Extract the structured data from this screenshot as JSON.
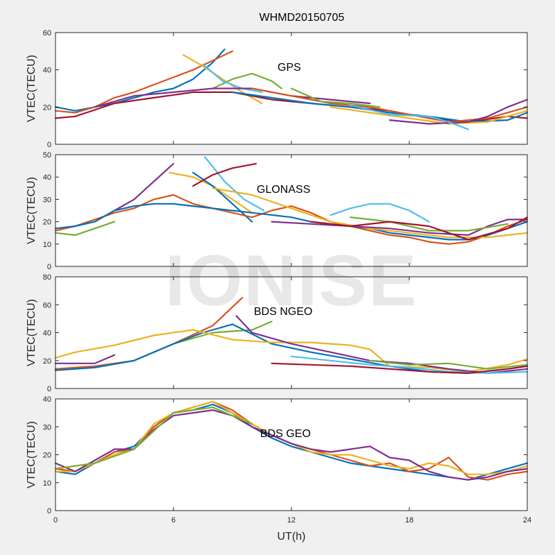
{
  "figure": {
    "title": "WHMD20150705",
    "watermark": "IONISE"
  },
  "colors": [
    "#0072BD",
    "#D95319",
    "#EDB120",
    "#7E2F8E",
    "#77AC30",
    "#4DBEEE",
    "#A2142F"
  ],
  "chart_data": [
    {
      "type": "line",
      "annotation": "GPS",
      "ylabel": "VTEC(TECU)",
      "xlim": [
        0,
        24
      ],
      "ylim": [
        0,
        60
      ],
      "yticks": [
        "0",
        "20",
        "40",
        "60"
      ],
      "xticks": [
        "0",
        "6",
        "12",
        "18",
        "24"
      ],
      "series": [
        {
          "color_index": 0,
          "x": [
            0,
            1,
            2,
            3,
            4,
            5,
            6,
            7,
            8,
            8.6
          ],
          "y": [
            20,
            18,
            20,
            22,
            25,
            28,
            30,
            35,
            44,
            51
          ]
        },
        {
          "color_index": 1,
          "x": [
            0,
            1,
            2,
            3,
            4,
            5,
            6,
            7,
            8,
            9
          ],
          "y": [
            18,
            17,
            20,
            25,
            28,
            32,
            36,
            40,
            45,
            50
          ]
        },
        {
          "color_index": 2,
          "x": [
            6.5,
            7.5,
            8.5,
            9.5,
            10.5
          ],
          "y": [
            48,
            42,
            35,
            28,
            22
          ]
        },
        {
          "color_index": 4,
          "x": [
            8,
            9,
            10,
            11,
            11.5
          ],
          "y": [
            30,
            35,
            38,
            34,
            30
          ]
        },
        {
          "color_index": 5,
          "x": [
            7.5,
            8.5,
            9.5,
            10.5
          ],
          "y": [
            43,
            34,
            30,
            28
          ]
        },
        {
          "color_index": 3,
          "x": [
            2,
            4,
            6,
            8,
            10,
            12,
            14,
            16
          ],
          "y": [
            20,
            26,
            28,
            30,
            30,
            26,
            24,
            22
          ]
        },
        {
          "color_index": 6,
          "x": [
            0,
            1,
            3,
            5,
            7,
            9,
            11,
            13,
            15,
            17,
            19,
            21,
            23,
            24
          ],
          "y": [
            14,
            15,
            22,
            25,
            28,
            28,
            24,
            22,
            20,
            18,
            14,
            12,
            15,
            14
          ]
        },
        {
          "color_index": 0,
          "x": [
            9,
            11,
            13,
            15,
            17,
            19,
            21,
            23,
            24
          ],
          "y": [
            28,
            25,
            22,
            20,
            17,
            15,
            12,
            13,
            17
          ]
        },
        {
          "color_index": 1,
          "x": [
            10,
            12,
            14,
            16,
            18,
            20,
            22,
            24
          ],
          "y": [
            30,
            26,
            22,
            20,
            16,
            12,
            14,
            20
          ]
        },
        {
          "color_index": 2,
          "x": [
            14,
            16,
            18,
            20,
            22,
            24
          ],
          "y": [
            20,
            17,
            14,
            11,
            12,
            18
          ]
        },
        {
          "color_index": 3,
          "x": [
            17,
            19,
            21,
            22,
            23,
            24
          ],
          "y": [
            13,
            11,
            12,
            15,
            20,
            24
          ]
        },
        {
          "color_index": 5,
          "x": [
            15,
            17,
            19,
            20,
            21
          ],
          "y": [
            21,
            16,
            15,
            12,
            8
          ]
        },
        {
          "color_index": 4,
          "x": [
            12,
            13.5,
            15,
            16.5
          ],
          "y": [
            30,
            23,
            22,
            20
          ]
        }
      ]
    },
    {
      "type": "line",
      "annotation": "GLONASS",
      "ylabel": "VTEC(TECU)",
      "xlim": [
        0,
        24
      ],
      "ylim": [
        0,
        50
      ],
      "yticks": [
        "0",
        "10",
        "20",
        "30",
        "40",
        "50"
      ],
      "xticks": [
        "0",
        "6",
        "12",
        "18",
        "24"
      ],
      "series": [
        {
          "color_index": 3,
          "x": [
            2,
            3,
            4,
            5,
            6
          ],
          "y": [
            20,
            25,
            30,
            38,
            46
          ]
        },
        {
          "color_index": 2,
          "x": [
            5.8,
            7,
            8,
            9,
            10
          ],
          "y": [
            42,
            40,
            36,
            30,
            24
          ]
        },
        {
          "color_index": 0,
          "x": [
            7,
            8,
            9,
            10
          ],
          "y": [
            42,
            36,
            28,
            20
          ]
        },
        {
          "color_index": 5,
          "x": [
            7.6,
            8.6,
            9.6,
            10.6
          ],
          "y": [
            49,
            38,
            30,
            25
          ]
        },
        {
          "color_index": 6,
          "x": [
            7,
            8,
            9,
            10.2
          ],
          "y": [
            36,
            41,
            44,
            46
          ]
        },
        {
          "color_index": 4,
          "x": [
            0,
            1,
            2,
            3
          ],
          "y": [
            15,
            14,
            17,
            20
          ]
        },
        {
          "color_index": 1,
          "x": [
            0,
            1,
            2,
            3,
            4,
            5,
            6,
            7,
            8,
            9,
            10,
            11,
            12,
            13,
            14,
            15,
            16,
            17,
            18,
            19,
            20,
            21,
            22,
            23,
            24
          ],
          "y": [
            16,
            18,
            21,
            24,
            26,
            30,
            32,
            28,
            26,
            24,
            22,
            25,
            27,
            24,
            20,
            18,
            16,
            14,
            13,
            11,
            10,
            11,
            14,
            18,
            21
          ]
        },
        {
          "color_index": 0,
          "x": [
            0,
            1,
            2,
            3,
            4,
            5,
            6,
            7,
            8,
            9,
            10,
            11,
            12,
            13,
            14,
            15,
            16,
            17,
            18,
            19,
            20,
            21,
            22,
            23,
            24
          ],
          "y": [
            17,
            18,
            20,
            25,
            27,
            28,
            28,
            27,
            26,
            25,
            24,
            23,
            22,
            20,
            19,
            18,
            17,
            15,
            14,
            13,
            12,
            12,
            14,
            17,
            20
          ]
        },
        {
          "color_index": 2,
          "x": [
            8,
            10,
            12,
            14,
            16,
            18,
            20,
            22,
            24
          ],
          "y": [
            35,
            32,
            26,
            20,
            17,
            15,
            13,
            13,
            15
          ]
        },
        {
          "color_index": 5,
          "x": [
            14,
            15,
            16,
            17,
            18,
            19
          ],
          "y": [
            23,
            26,
            28,
            28,
            25,
            20
          ]
        },
        {
          "color_index": 3,
          "x": [
            11,
            13,
            15,
            17,
            19,
            21,
            22,
            23,
            24
          ],
          "y": [
            20,
            19,
            18,
            17,
            15,
            14,
            18,
            21,
            21
          ]
        },
        {
          "color_index": 4,
          "x": [
            15,
            17,
            19,
            21,
            23
          ],
          "y": [
            22,
            20,
            16,
            16,
            19
          ]
        },
        {
          "color_index": 6,
          "x": [
            13,
            15,
            17,
            19,
            21,
            23,
            24
          ],
          "y": [
            20,
            18,
            20,
            18,
            12,
            17,
            22
          ]
        }
      ]
    },
    {
      "type": "line",
      "annotation": "BDS NGEO",
      "ylabel": "VTEC(TECU)",
      "xlim": [
        0,
        24
      ],
      "ylim": [
        0,
        80
      ],
      "yticks": [
        "0",
        "20",
        "40",
        "60",
        "80"
      ],
      "xticks": [
        "0",
        "6",
        "12",
        "18",
        "24"
      ],
      "series": [
        {
          "color_index": 4,
          "x": [
            0,
            2,
            4,
            6,
            8,
            10,
            11
          ],
          "y": [
            14,
            15,
            20,
            32,
            40,
            42,
            48
          ]
        },
        {
          "color_index": 1,
          "x": [
            0,
            2,
            4,
            6,
            8,
            9.5
          ],
          "y": [
            14,
            16,
            20,
            32,
            45,
            65
          ]
        },
        {
          "color_index": 0,
          "x": [
            0,
            2,
            4,
            6,
            7.5,
            9,
            11,
            13,
            15,
            17,
            19,
            21,
            23,
            24
          ],
          "y": [
            13,
            15,
            20,
            32,
            40,
            46,
            32,
            26,
            21,
            16,
            12,
            11,
            14,
            16
          ]
        },
        {
          "color_index": 2,
          "x": [
            0,
            1,
            3,
            5,
            7,
            9,
            11,
            13,
            15,
            16,
            17,
            19,
            21,
            23,
            24
          ],
          "y": [
            22,
            26,
            31,
            38,
            42,
            35,
            33,
            33,
            31,
            28,
            16,
            15,
            12,
            17,
            21
          ]
        },
        {
          "color_index": 3,
          "x": [
            0,
            2,
            3
          ],
          "y": [
            18,
            18,
            24
          ]
        },
        {
          "color_index": 3,
          "x": [
            9.2,
            10,
            12,
            14,
            16,
            18,
            20,
            22,
            24
          ],
          "y": [
            52,
            40,
            32,
            26,
            20,
            18,
            14,
            11,
            14
          ]
        },
        {
          "color_index": 5,
          "x": [
            12,
            14,
            16,
            18,
            20,
            22,
            24
          ],
          "y": [
            23,
            20,
            17,
            15,
            12,
            11,
            12
          ]
        },
        {
          "color_index": 6,
          "x": [
            11,
            13,
            15,
            17,
            19,
            21,
            23,
            24
          ],
          "y": [
            18,
            17,
            16,
            14,
            12,
            11,
            14,
            16
          ]
        },
        {
          "color_index": 4,
          "x": [
            16,
            18,
            20,
            22,
            24
          ],
          "y": [
            20,
            17,
            18,
            14,
            17
          ]
        }
      ]
    },
    {
      "type": "line",
      "annotation": "BDS GEO",
      "ylabel": "VTEC(TECU)",
      "xlabel": "UT(h)",
      "xlim": [
        0,
        24
      ],
      "ylim": [
        0,
        40
      ],
      "yticks": [
        "0",
        "10",
        "20",
        "30",
        "40"
      ],
      "xticks": [
        "0",
        "6",
        "12",
        "18",
        "24"
      ],
      "series": [
        {
          "color_index": 0,
          "x": [
            0,
            1,
            2,
            3,
            4,
            5,
            6,
            7,
            8,
            9,
            10,
            11,
            12,
            13,
            14,
            15,
            16,
            17,
            18,
            19,
            20,
            21,
            22,
            23,
            24
          ],
          "y": [
            14,
            13,
            17,
            21,
            23,
            30,
            35,
            36,
            38,
            35,
            30,
            26,
            23,
            21,
            19,
            17,
            16,
            15,
            14,
            13,
            12,
            11,
            13,
            15,
            17
          ]
        },
        {
          "color_index": 1,
          "x": [
            0,
            1,
            2,
            3,
            4,
            5,
            6,
            7,
            8,
            9,
            10,
            11,
            12,
            13,
            14,
            15,
            16,
            17,
            18,
            19,
            20,
            21,
            22,
            23,
            24
          ],
          "y": [
            15,
            14,
            17,
            21,
            22,
            30,
            35,
            37,
            39,
            36,
            31,
            27,
            24,
            22,
            20,
            18,
            16,
            17,
            14,
            15,
            19,
            12,
            11,
            13,
            14
          ]
        },
        {
          "color_index": 2,
          "x": [
            0,
            1,
            2,
            3,
            4,
            5,
            6,
            7,
            8,
            9,
            10,
            11,
            12,
            13,
            14,
            15,
            16,
            17,
            18,
            19,
            20,
            21,
            22,
            23,
            24
          ],
          "y": [
            14,
            14,
            17,
            20,
            22,
            31,
            35,
            37,
            39,
            35,
            31,
            27,
            24,
            21,
            20,
            20,
            18,
            16,
            15,
            17,
            16,
            13,
            13,
            14,
            16
          ]
        },
        {
          "color_index": 3,
          "x": [
            0,
            1,
            2,
            3,
            4,
            5,
            6,
            7,
            8,
            9,
            10,
            11,
            12,
            13,
            14,
            15,
            16,
            17,
            18,
            19,
            20,
            21,
            22,
            23,
            24
          ],
          "y": [
            17,
            14,
            18,
            22,
            22,
            29,
            34,
            35,
            36,
            34,
            30,
            27,
            24,
            22,
            21,
            22,
            23,
            19,
            18,
            14,
            12,
            11,
            12,
            14,
            15
          ]
        },
        {
          "color_index": 4,
          "x": [
            0,
            2,
            4,
            6,
            8,
            10
          ],
          "y": [
            15,
            17,
            22,
            35,
            37,
            31
          ]
        }
      ]
    }
  ]
}
